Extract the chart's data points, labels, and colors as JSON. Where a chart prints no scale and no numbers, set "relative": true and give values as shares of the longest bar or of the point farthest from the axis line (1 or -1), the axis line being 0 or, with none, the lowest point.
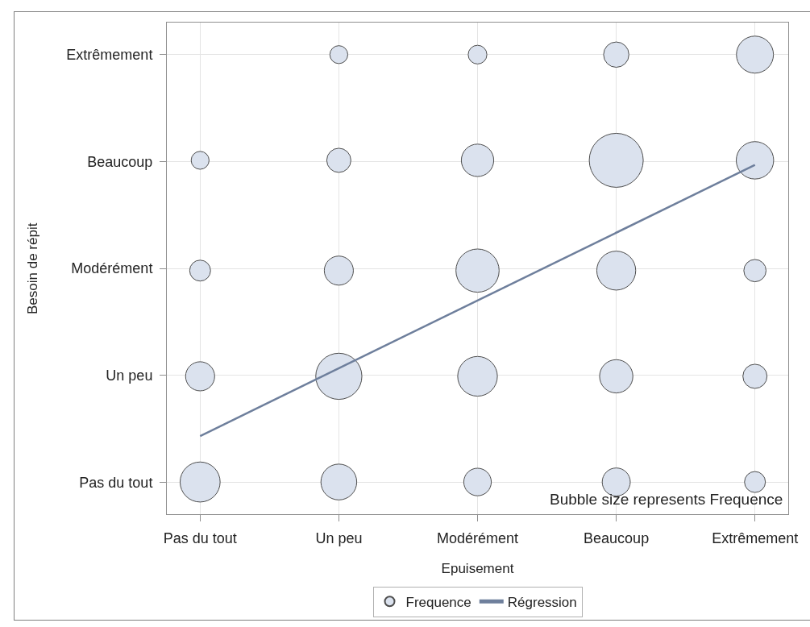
{
  "chart_data": {
    "type": "bubble",
    "relative": true,
    "xlabel": "Epuisement",
    "categories": [
      "Pas du tout",
      "Un peu",
      "Modérément",
      "Beaucoup",
      "Extrêmement"
    ],
    "y_categories": [
      "Extrêmement",
      "Beaucoup",
      "Modérément",
      "Un peu",
      "Pas du tout"
    ],
    "grid": true,
    "legend": "bottom",
    "annotations": [
      "Besoin de répit",
      "Bubble size represents Frequence"
    ],
    "series": [
      {
        "name": "Frequence",
        "color": "#dbe2ee",
        "x": [
          "Pas du tout",
          "Un peu",
          "Modérément",
          "Beaucoup",
          "Extrêmement",
          "Pas du tout",
          "Un peu",
          "Modérément",
          "Beaucoup",
          "Extrêmement",
          "Pas du tout",
          "Un peu",
          "Modérément",
          "Beaucoup",
          "Extrêmement",
          "Pas du tout",
          "Un peu",
          "Modérément",
          "Beaucoup",
          "Extrêmement",
          "Un peu",
          "Modérément",
          "Beaucoup",
          "Extrêmement"
        ],
        "values": [
          0.07,
          0.07,
          0.07,
          0.07,
          0.07,
          0.3,
          0.3,
          0.3,
          0.3,
          0.3,
          0.53,
          0.53,
          0.53,
          0.53,
          0.53,
          0.77,
          0.77,
          0.77,
          0.77,
          0.77,
          1,
          1,
          1,
          1
        ],
        "sizes": [
          0.55,
          0.44,
          0.26,
          0.27,
          0.15,
          0.29,
          0.73,
          0.54,
          0.38,
          0.2,
          0.15,
          0.29,
          0.64,
          0.52,
          0.17,
          0.11,
          0.2,
          0.36,
          1,
          0.48,
          0.11,
          0.12,
          0.22,
          0.47
        ]
      },
      {
        "name": "Régression",
        "type": "line",
        "color": "#6e7f9c",
        "x": [
          "Pas du tout",
          "Extrêmement"
        ],
        "values": [
          0.17,
          0.76
        ]
      }
    ]
  }
}
